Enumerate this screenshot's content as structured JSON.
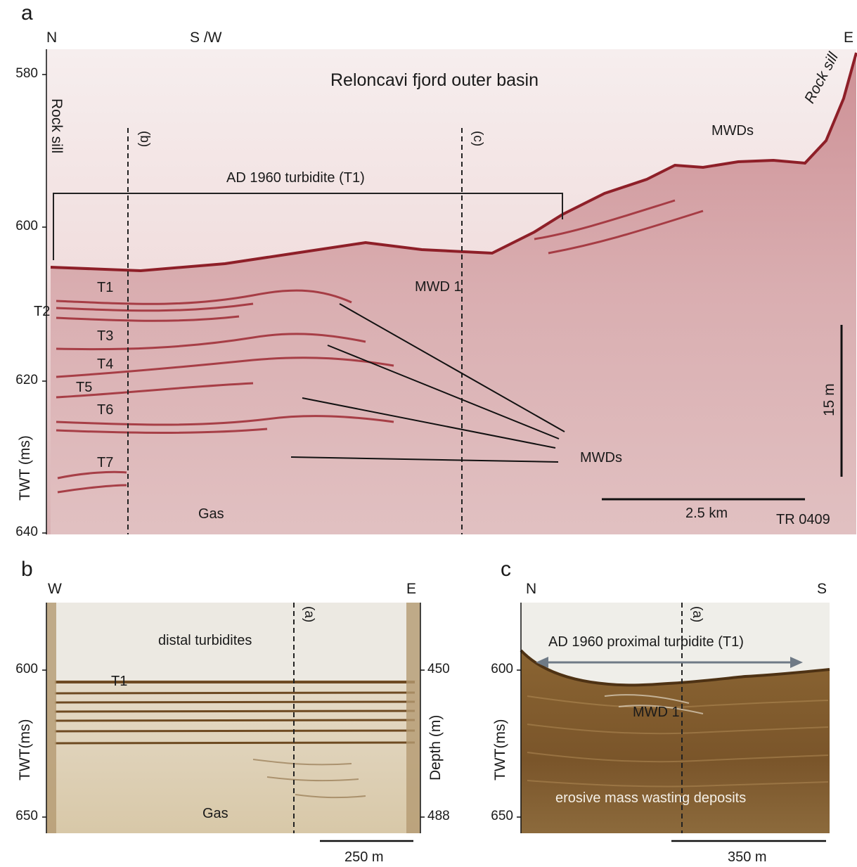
{
  "panel_a": {
    "letter": "a",
    "dir_left": "N",
    "dir_mid": "S /W",
    "dir_right": "E",
    "title": "Reloncavi fjord outer basin",
    "y_axis_label": "TWT (ms)",
    "y_ticks": [
      "580",
      "600",
      "620",
      "640"
    ],
    "rock_sill_left": "Rock sill",
    "rock_sill_right": "Rock sill",
    "marker_b": "(b)",
    "marker_c": "(c)",
    "bracket_label": "AD 1960  turbidite (T1)",
    "mwds_top": "MWDs",
    "mwd1": "MWD 1",
    "turbidites": [
      "T1",
      "T2",
      "T3",
      "T4",
      "T5",
      "T6",
      "T7"
    ],
    "mwds_lines_label": "MWDs",
    "gas": "Gas",
    "vertical_scale": "15 m",
    "horizontal_scale": "2.5 km",
    "profile_id": "TR 0409"
  },
  "panel_b": {
    "letter": "b",
    "dir_left": "W",
    "dir_right": "E",
    "marker_a": "(a)",
    "title": "distal turbidites",
    "t1": "T1",
    "gas": "Gas",
    "y_axis_label": "TWT(ms)",
    "y_ticks": [
      "600",
      "650"
    ],
    "depth_label": "Depth (m)",
    "depth_ticks": [
      "450",
      "488"
    ],
    "scale": "250 m"
  },
  "panel_c": {
    "letter": "c",
    "dir_left": "N",
    "dir_right": "S",
    "marker_a": "(a)",
    "title": "AD 1960  proximal turbidite (T1)",
    "mwd1": "MWD 1",
    "bottom_label": "erosive mass wasting deposits",
    "y_axis_label": "TWT(ms)",
    "y_ticks": [
      "600",
      "650"
    ],
    "scale": "350 m"
  },
  "colors": {
    "profile_a_bg": "#f3e4e4",
    "profile_a_reflector": "#9e2a33",
    "profile_bc_bg": "#e6dcc8",
    "profile_bc_reflector": "#6e4a22"
  }
}
